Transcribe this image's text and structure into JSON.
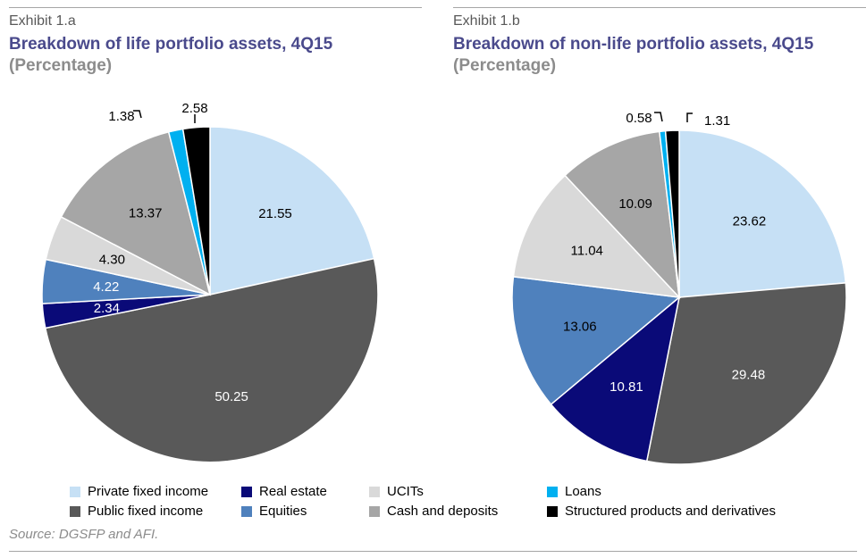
{
  "chart_data": [
    {
      "type": "pie",
      "exhibit": "Exhibit 1.a",
      "title": "Breakdown of life portfolio assets, 4Q15",
      "subtitle": "(Percentage)",
      "slices": [
        {
          "label": "Private fixed income",
          "value": 21.55,
          "display": "21.55",
          "color": "#c6e0f5",
          "text_color": "#000000"
        },
        {
          "label": "Public fixed income",
          "value": 50.25,
          "display": "50.25",
          "color": "#595959",
          "text_color": "#ffffff"
        },
        {
          "label": "Real estate",
          "value": 2.34,
          "display": "2.34",
          "color": "#0a0a78",
          "text_color": "#ffffff"
        },
        {
          "label": "Equities",
          "value": 4.22,
          "display": "4.22",
          "color": "#4f81bd",
          "text_color": "#ffffff"
        },
        {
          "label": "UCITs",
          "value": 4.3,
          "display": "4.30",
          "color": "#d9d9d9",
          "text_color": "#000000"
        },
        {
          "label": "Cash and deposits",
          "value": 13.37,
          "display": "13.37",
          "color": "#a6a6a6",
          "text_color": "#000000"
        },
        {
          "label": "Loans",
          "value": 1.38,
          "display": "1.38",
          "color": "#00b0f0",
          "text_color": "#000000"
        },
        {
          "label": "Structured products and derivatives",
          "value": 2.58,
          "display": "2.58",
          "color": "#000000",
          "text_color": "#000000"
        }
      ]
    },
    {
      "type": "pie",
      "exhibit": "Exhibit 1.b",
      "title": "Breakdown of non-life portfolio assets, 4Q15",
      "subtitle": "(Percentage)",
      "slices": [
        {
          "label": "Private fixed income",
          "value": 23.62,
          "display": "23.62",
          "color": "#c6e0f5",
          "text_color": "#000000"
        },
        {
          "label": "Public fixed income",
          "value": 29.48,
          "display": "29.48",
          "color": "#595959",
          "text_color": "#ffffff"
        },
        {
          "label": "Real estate",
          "value": 10.81,
          "display": "10.81",
          "color": "#0a0a78",
          "text_color": "#ffffff"
        },
        {
          "label": "Equities",
          "value": 13.06,
          "display": "13.06",
          "color": "#4f81bd",
          "text_color": "#000000"
        },
        {
          "label": "UCITs",
          "value": 11.04,
          "display": "11.04",
          "color": "#d9d9d9",
          "text_color": "#000000"
        },
        {
          "label": "Cash and deposits",
          "value": 10.09,
          "display": "10.09",
          "color": "#a6a6a6",
          "text_color": "#000000"
        },
        {
          "label": "Loans",
          "value": 0.58,
          "display": "0.58",
          "color": "#00b0f0",
          "text_color": "#000000"
        },
        {
          "label": "Structured products and derivatives",
          "value": 1.31,
          "display": "1.31",
          "color": "#000000",
          "text_color": "#000000"
        }
      ]
    }
  ],
  "legend": [
    {
      "label": "Private fixed income",
      "color": "#c6e0f5"
    },
    {
      "label": "Real estate",
      "color": "#0a0a78"
    },
    {
      "label": "UCITs",
      "color": "#d9d9d9"
    },
    {
      "label": "Loans",
      "color": "#00b0f0"
    },
    {
      "label": "Public fixed income",
      "color": "#595959"
    },
    {
      "label": "Equities",
      "color": "#4f81bd"
    },
    {
      "label": "Cash and deposits",
      "color": "#a6a6a6"
    },
    {
      "label": "Structured products and derivatives",
      "color": "#000000"
    }
  ],
  "source": "Source: DGSFP and AFI."
}
